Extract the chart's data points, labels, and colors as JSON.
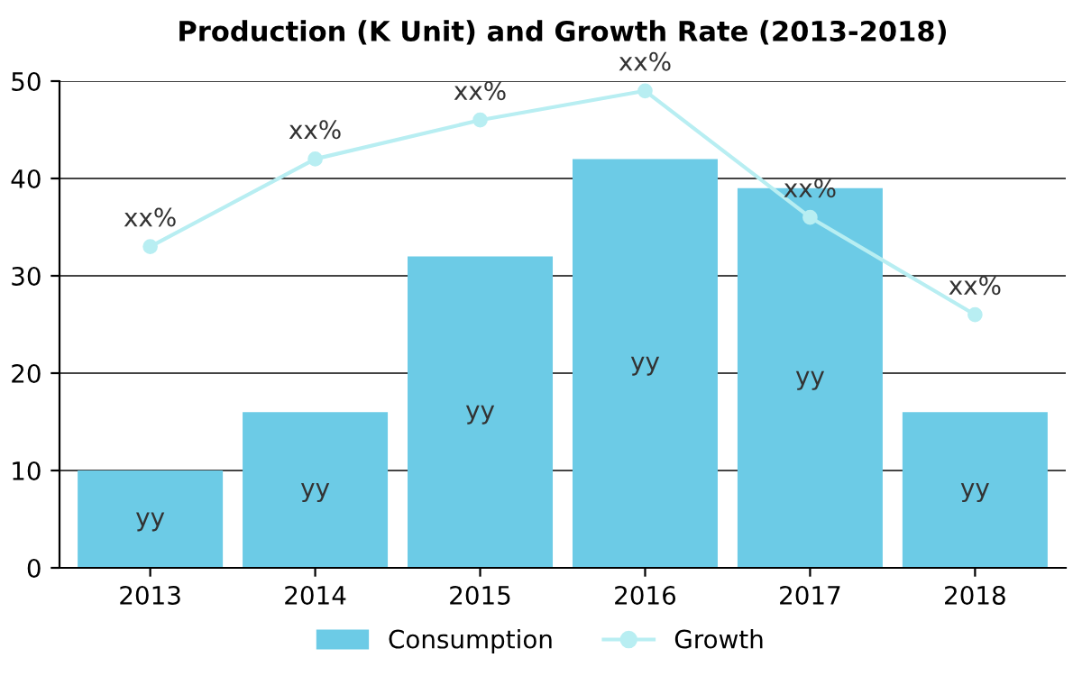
{
  "chart_data": {
    "type": "bar",
    "title": "Production (K Unit) and Growth Rate (2013-2018)",
    "categories": [
      "2013",
      "2014",
      "2015",
      "2016",
      "2017",
      "2018"
    ],
    "series": [
      {
        "name": "Consumption",
        "color": "#6ccbe6",
        "values": [
          10,
          16,
          32,
          42,
          39,
          16
        ],
        "value_labels": [
          "yy",
          "yy",
          "yy",
          "yy",
          "yy",
          "yy"
        ]
      },
      {
        "name": "Growth",
        "type": "line",
        "color": "#b8eef2",
        "marker": "circle",
        "values": [
          33,
          42,
          46,
          49,
          36,
          26
        ],
        "value_labels": [
          "xx%",
          "xx%",
          "xx%",
          "xx%",
          "xx%",
          "xx%"
        ]
      }
    ],
    "ylim": [
      0,
      50
    ],
    "yticks": [
      0,
      10,
      20,
      30,
      40,
      50
    ],
    "grid": "y",
    "legend": "bottom"
  }
}
